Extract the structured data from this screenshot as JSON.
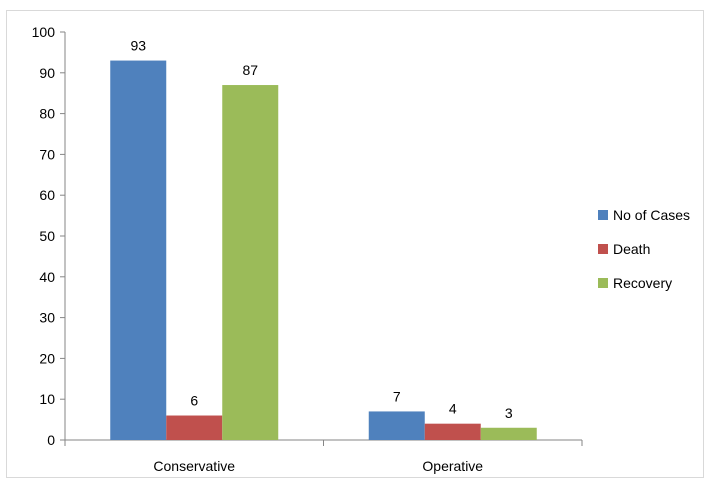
{
  "chart_data": {
    "type": "bar",
    "title": "",
    "xlabel": "",
    "ylabel": "",
    "categories": [
      "Conservative",
      "Operative"
    ],
    "series": [
      {
        "name": "No of Cases",
        "values": [
          93,
          7
        ],
        "color": "#4f81bd"
      },
      {
        "name": "Death",
        "values": [
          6,
          4
        ],
        "color": "#c0504d"
      },
      {
        "name": "Recovery",
        "values": [
          87,
          3
        ],
        "color": "#9bbb59"
      }
    ],
    "ylim": [
      0,
      100
    ],
    "yticks": [
      0,
      10,
      20,
      30,
      40,
      50,
      60,
      70,
      80,
      90,
      100
    ],
    "grid": false,
    "legend_position": "right",
    "data_labels": true
  }
}
